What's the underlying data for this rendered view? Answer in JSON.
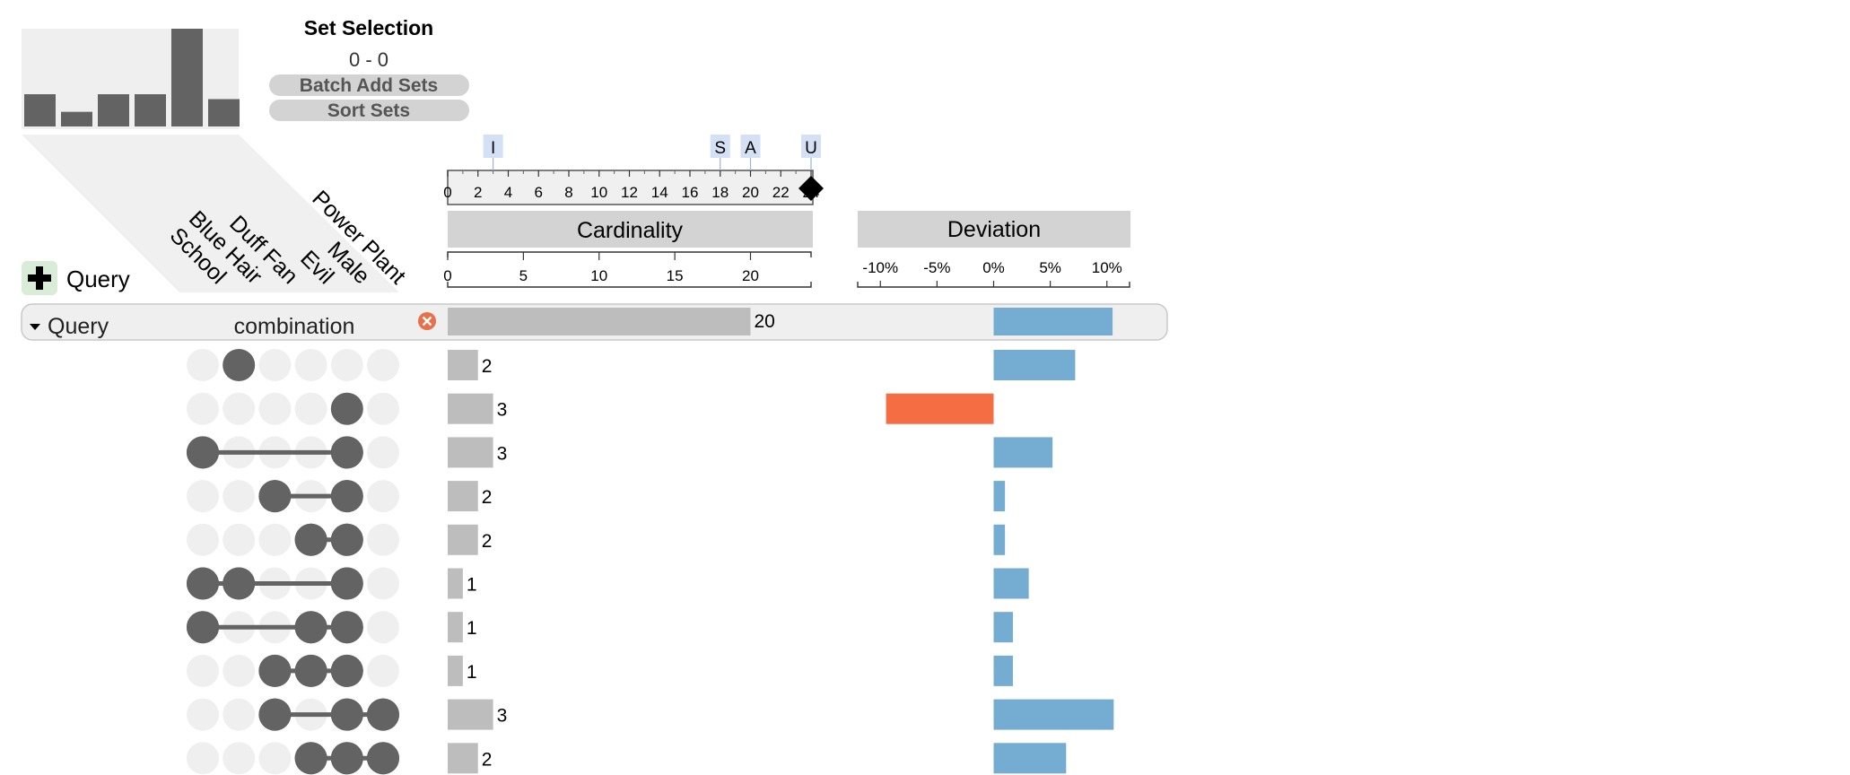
{
  "set_selection": {
    "title": "Set Selection",
    "range": "0 - 0",
    "batch_add_label": "Batch Add Sets",
    "sort_label": "Sort Sets"
  },
  "set_size_bars": [
    0.33,
    0.15,
    0.33,
    0.33,
    1.0,
    0.28
  ],
  "set_names": [
    "School",
    "Blue Hair",
    "Duff Fan",
    "Evil",
    "Male",
    "Power Plant"
  ],
  "add_query_label": "Query",
  "group_row": {
    "label": "Query",
    "type": "combination",
    "count": 20,
    "deviation": 10.5
  },
  "slider": {
    "markers": [
      {
        "label": "I",
        "value": 3
      },
      {
        "label": "S",
        "value": 18
      },
      {
        "label": "A",
        "value": 20
      },
      {
        "label": "U",
        "value": 24
      }
    ],
    "ticks": [
      0,
      2,
      4,
      6,
      8,
      10,
      12,
      14,
      16,
      18,
      20,
      22,
      24
    ],
    "max": 24,
    "handle_value": 24
  },
  "cardinality": {
    "title": "Cardinality",
    "ticks": [
      0,
      5,
      10,
      15,
      20
    ],
    "max": 24
  },
  "deviation": {
    "title": "Deviation",
    "ticks": [
      "-10%",
      "-5%",
      "0%",
      "5%",
      "10%"
    ],
    "tick_values": [
      -10,
      -5,
      0,
      5,
      10
    ],
    "range": [
      -12,
      12
    ]
  },
  "chart_data": {
    "type": "bar",
    "title": "",
    "xlabel": "Cardinality",
    "ylabel": "",
    "sets": [
      "School",
      "Blue Hair",
      "Duff Fan",
      "Evil",
      "Male",
      "Power Plant"
    ],
    "rows": [
      {
        "members": [
          1
        ],
        "cardinality": 2,
        "deviation": 7.2
      },
      {
        "members": [
          4
        ],
        "cardinality": 3,
        "deviation": -9.5
      },
      {
        "members": [
          0,
          4
        ],
        "cardinality": 3,
        "deviation": 5.2
      },
      {
        "members": [
          2,
          4
        ],
        "cardinality": 2,
        "deviation": 1.0
      },
      {
        "members": [
          3,
          4
        ],
        "cardinality": 2,
        "deviation": 1.0
      },
      {
        "members": [
          0,
          1,
          4
        ],
        "cardinality": 1,
        "deviation": 3.1
      },
      {
        "members": [
          0,
          3,
          4
        ],
        "cardinality": 1,
        "deviation": 1.7
      },
      {
        "members": [
          2,
          3,
          4
        ],
        "cardinality": 1,
        "deviation": 1.7
      },
      {
        "members": [
          2,
          4,
          5
        ],
        "cardinality": 3,
        "deviation": 10.6
      },
      {
        "members": [
          3,
          4,
          5
        ],
        "cardinality": 2,
        "deviation": 6.4
      }
    ]
  },
  "colors": {
    "bar": "#bdbdbd",
    "dot_on": "#636363",
    "dot_off": "#efefef",
    "dev_pos": "#74add1",
    "dev_neg": "#f46d43",
    "header_bg": "#d3d3d3",
    "add_button_bg": "#d8ecd8",
    "remove": "#e8704a"
  }
}
